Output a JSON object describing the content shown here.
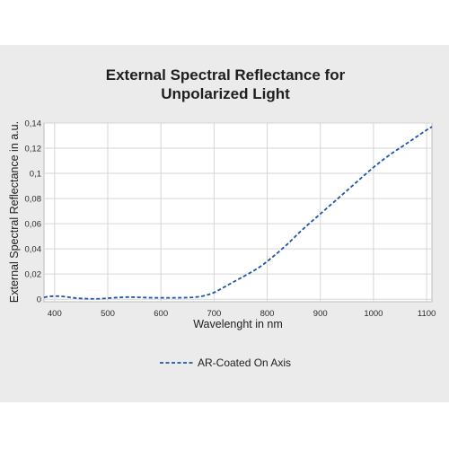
{
  "chart_data": {
    "type": "line",
    "title_lines": [
      "External Spectral Reflectance for",
      "Unpolarized Light"
    ],
    "xlabel": "Wavelenght in nm",
    "ylabel": "External Spectral Reflectance in a.u.",
    "xlim": [
      380,
      1110
    ],
    "ylim": [
      -0.002,
      0.14
    ],
    "x_ticks": [
      400,
      500,
      600,
      700,
      800,
      900,
      1000,
      1100
    ],
    "y_ticks": [
      0,
      0.02,
      0.04,
      0.06,
      0.08,
      0.1,
      0.12,
      0.14
    ],
    "y_tick_labels": [
      "0",
      "0,02",
      "0,04",
      "0,06",
      "0,08",
      "0,1",
      "0,12",
      "0,14"
    ],
    "grid": true,
    "legend_position": "bottom-center",
    "series": [
      {
        "name": "AR-Coated On Axis",
        "color": "#1f55a8",
        "line_style": "dashed",
        "x": [
          380,
          390,
          400,
          410,
          420,
          430,
          440,
          450,
          460,
          470,
          480,
          490,
          500,
          510,
          520,
          530,
          540,
          550,
          560,
          570,
          580,
          590,
          600,
          610,
          620,
          630,
          640,
          650,
          660,
          670,
          680,
          690,
          700,
          710,
          720,
          730,
          740,
          750,
          760,
          770,
          780,
          790,
          800,
          820,
          840,
          860,
          880,
          900,
          920,
          940,
          960,
          980,
          1000,
          1020,
          1040,
          1060,
          1080,
          1100,
          1110
        ],
        "y": [
          0.0015,
          0.0022,
          0.0025,
          0.0024,
          0.002,
          0.0014,
          0.0009,
          0.0006,
          0.0004,
          0.0003,
          0.0003,
          0.0005,
          0.0008,
          0.0011,
          0.0014,
          0.0016,
          0.0017,
          0.0016,
          0.0015,
          0.0013,
          0.0012,
          0.0011,
          0.0011,
          0.0011,
          0.0011,
          0.0011,
          0.0012,
          0.0013,
          0.0015,
          0.0019,
          0.0026,
          0.0037,
          0.0053,
          0.0075,
          0.0098,
          0.0122,
          0.0145,
          0.0168,
          0.0191,
          0.0215,
          0.024,
          0.0268,
          0.03,
          0.037,
          0.0445,
          0.0528,
          0.0605,
          0.0678,
          0.0752,
          0.0826,
          0.09,
          0.0975,
          0.1048,
          0.1115,
          0.1175,
          0.123,
          0.1288,
          0.1345,
          0.137
        ]
      }
    ]
  }
}
